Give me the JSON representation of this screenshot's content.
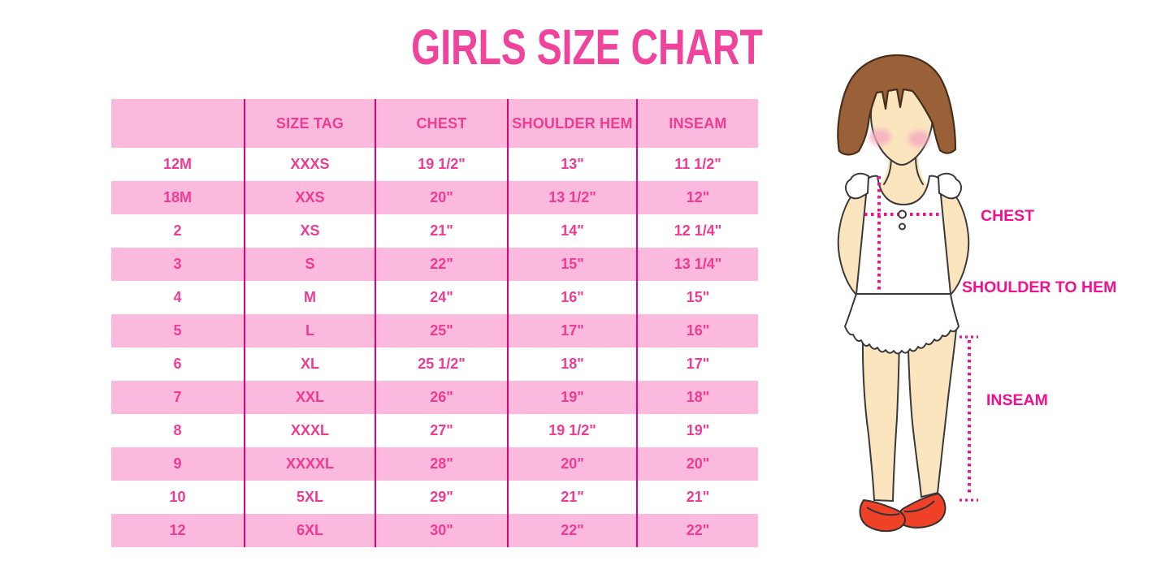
{
  "title": "GIRLS SIZE CHART",
  "chart_data": {
    "type": "table",
    "title": "GIRLS SIZE CHART",
    "columns": [
      "",
      "SIZE TAG",
      "CHEST",
      "SHOULDER HEM",
      "INSEAM"
    ],
    "rows": [
      [
        "12M",
        "XXXS",
        "19 1/2\"",
        "13\"",
        "11 1/2\""
      ],
      [
        "18M",
        "XXS",
        "20\"",
        "13 1/2\"",
        "12\""
      ],
      [
        "2",
        "XS",
        "21\"",
        "14\"",
        "12 1/4\""
      ],
      [
        "3",
        "S",
        "22\"",
        "15\"",
        "13 1/4\""
      ],
      [
        "4",
        "M",
        "24\"",
        "16\"",
        "15\""
      ],
      [
        "5",
        "L",
        "25\"",
        "17\"",
        "16\""
      ],
      [
        "6",
        "XL",
        "25 1/2\"",
        "18\"",
        "17\""
      ],
      [
        "7",
        "XXL",
        "26\"",
        "19\"",
        "18\""
      ],
      [
        "8",
        "XXXL",
        "27\"",
        "19 1/2\"",
        "19\""
      ],
      [
        "9",
        "XXXXL",
        "28\"",
        "20\"",
        "20\""
      ],
      [
        "10",
        "5XL",
        "29\"",
        "21\"",
        "21\""
      ],
      [
        "12",
        "6XL",
        "30\"",
        "22\"",
        "22\""
      ]
    ],
    "units": "inches",
    "row_striping": "header pink, then alternating white/pink starting with white",
    "annotations": [
      "CHEST",
      "SHOULDER TO HEM",
      "INSEAM"
    ]
  },
  "figure": {
    "description": "illustrated girl with measurement guide lines",
    "labels": {
      "chest": "CHEST",
      "shoulder_to_hem": "SHOULDER TO HEM",
      "inseam": "INSEAM"
    }
  },
  "colors": {
    "title_pink": "#F0449C",
    "table_row_pink": "#FBB9DD",
    "table_text_pink": "#EF3B93",
    "table_divider_magenta": "#E0017B",
    "measure_line_magenta": "#F2108C",
    "hair_brown": "#9A6138",
    "skin_tone": "#FBE5BE",
    "shoe_red": "#EF4128"
  }
}
